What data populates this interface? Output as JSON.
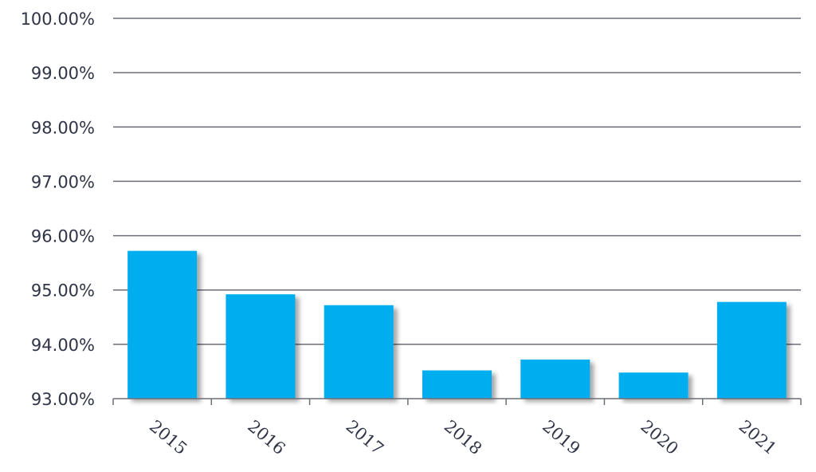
{
  "colors": {
    "bar": "#00aeef",
    "grid": "#6b6e78",
    "text": "#2f3447"
  },
  "chart_data": {
    "type": "bar",
    "title": "",
    "xlabel": "",
    "ylabel": "",
    "categories": [
      "2015",
      "2016",
      "2017",
      "2018",
      "2019",
      "2020",
      "2021"
    ],
    "values": [
      95.72,
      94.92,
      94.72,
      93.52,
      93.72,
      93.48,
      94.78
    ],
    "ylim": [
      93,
      100
    ],
    "yticks": [
      93,
      94,
      95,
      96,
      97,
      98,
      99,
      100
    ],
    "ytick_labels": [
      "93.00%",
      "94.00%",
      "95.00%",
      "96.00%",
      "97.00%",
      "98.00%",
      "99.00%",
      "100.00%"
    ],
    "grid": true,
    "legend": "none"
  }
}
